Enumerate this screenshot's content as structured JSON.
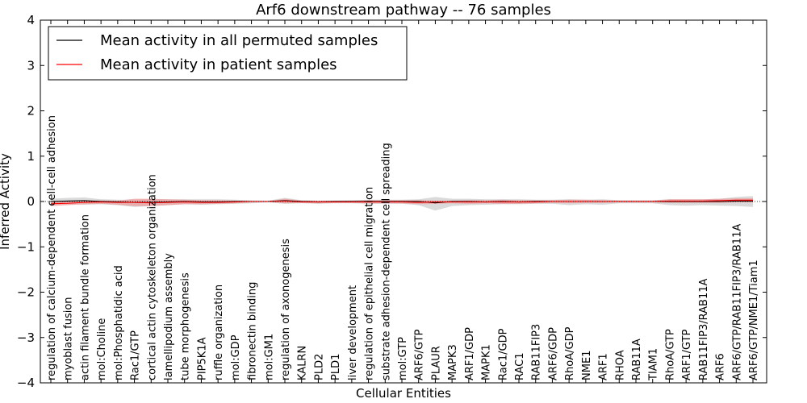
{
  "chart_data": {
    "type": "line",
    "title": "Arf6 downstream pathway -- 76 samples",
    "xlabel": "Cellular Entities",
    "ylabel": "Inferred Activity",
    "ylim": [
      -4,
      4
    ],
    "yticks": [
      "4",
      "3",
      "2",
      "1",
      "0",
      "−1",
      "−2",
      "−3",
      "−4"
    ],
    "ytick_values": [
      4,
      3,
      2,
      1,
      0,
      -1,
      -2,
      -3,
      -4
    ],
    "categories": [
      "regulation of calcium-dependent cell-cell adhesion",
      "myoblast fusion",
      "actin filament bundle formation",
      "mol:Choline",
      "mol:Phosphatidic acid",
      "Rac1/GTP",
      "cortical actin cytoskeleton organization",
      "lamellipodium assembly",
      "tube morphogenesis",
      "PIP5K1A",
      "ruffle organization",
      "mol:GDP",
      "fibronectin binding",
      "mol:GM1",
      "regulation of axonogenesis",
      "KALRN",
      "PLD2",
      "PLD1",
      "liver development",
      "regulation of epithelial cell migration",
      "substrate adhesion-dependent cell spreading",
      "mol:GTP",
      "ARF6/GTP",
      "PLAUR",
      "MAPK3",
      "ARF1/GDP",
      "MAPK1",
      "Rac1/GDP",
      "RAC1",
      "RAB11FIP3",
      "ARF6/GDP",
      "RhoA/GDP",
      "NME1",
      "ARF1",
      "RHOA",
      "RAB11A",
      "TIAM1",
      "RhoA/GTP",
      "ARF1/GTP",
      "RAB11FIP3/RAB11A",
      "ARF6",
      "ARF6/GTP/RAB11FIP3/RAB11A",
      "ARF6/GTP/NME1/Tiam1"
    ],
    "series": [
      {
        "name": "Mean activity in all permuted samples",
        "color": "#000000",
        "values": [
          0.0,
          0.01,
          0.02,
          0.0,
          -0.01,
          -0.02,
          -0.02,
          -0.01,
          0.0,
          -0.01,
          -0.01,
          0.0,
          0.0,
          0.0,
          0.02,
          0.0,
          -0.01,
          0.0,
          0.0,
          0.0,
          0.0,
          0.0,
          0.0,
          -0.03,
          0.0,
          0.0,
          -0.01,
          0.0,
          -0.01,
          0.0,
          0.0,
          0.0,
          0.0,
          0.0,
          0.0,
          0.0,
          0.0,
          0.0,
          0.0,
          0.0,
          0.0,
          0.01,
          0.01
        ],
        "band": {
          "color": "#bbbbbb",
          "upper": [
            0.06,
            0.08,
            0.09,
            0.05,
            0.04,
            0.04,
            0.05,
            0.05,
            0.05,
            0.05,
            0.05,
            0.04,
            0.03,
            0.02,
            0.08,
            0.03,
            0.02,
            0.02,
            0.03,
            0.04,
            0.04,
            0.04,
            0.05,
            0.1,
            0.06,
            0.06,
            0.05,
            0.05,
            0.05,
            0.04,
            0.04,
            0.05,
            0.04,
            0.05,
            0.03,
            0.03,
            0.03,
            0.05,
            0.05,
            0.05,
            0.06,
            0.1,
            0.12
          ],
          "lower": [
            -0.06,
            -0.06,
            -0.07,
            -0.06,
            -0.08,
            -0.12,
            -0.1,
            -0.08,
            -0.06,
            -0.07,
            -0.06,
            -0.05,
            -0.04,
            -0.02,
            -0.05,
            -0.04,
            -0.05,
            -0.04,
            -0.04,
            -0.05,
            -0.05,
            -0.05,
            -0.08,
            -0.2,
            -0.1,
            -0.08,
            -0.07,
            -0.06,
            -0.06,
            -0.05,
            -0.05,
            -0.08,
            -0.06,
            -0.07,
            -0.04,
            -0.04,
            -0.04,
            -0.08,
            -0.09,
            -0.08,
            -0.09,
            -0.1,
            -0.12
          ]
        }
      },
      {
        "name": "Mean activity in patient samples",
        "color": "#ff0000",
        "values": [
          -0.05,
          -0.04,
          -0.02,
          -0.01,
          -0.02,
          -0.02,
          -0.03,
          -0.02,
          -0.01,
          -0.02,
          -0.02,
          -0.01,
          0.0,
          0.0,
          0.01,
          -0.01,
          -0.01,
          -0.01,
          -0.01,
          -0.01,
          -0.01,
          -0.01,
          -0.02,
          -0.01,
          -0.01,
          -0.01,
          -0.01,
          -0.01,
          -0.01,
          -0.01,
          0.0,
          0.0,
          0.0,
          0.0,
          0.0,
          0.0,
          0.0,
          0.01,
          0.01,
          0.01,
          0.02,
          0.03,
          0.03
        ],
        "band": {
          "color": "#ee9999",
          "upper": [
            0.0,
            0.0,
            0.02,
            0.02,
            0.02,
            0.06,
            0.06,
            0.05,
            0.04,
            0.03,
            0.03,
            0.02,
            0.01,
            0.01,
            0.06,
            0.02,
            0.02,
            0.02,
            0.02,
            0.03,
            0.03,
            0.03,
            0.03,
            0.02,
            0.02,
            0.03,
            0.03,
            0.04,
            0.03,
            0.03,
            0.03,
            0.04,
            0.04,
            0.03,
            0.02,
            0.02,
            0.02,
            0.05,
            0.05,
            0.05,
            0.06,
            0.07,
            0.07
          ],
          "lower": [
            -0.1,
            -0.08,
            -0.06,
            -0.05,
            -0.07,
            -0.1,
            -0.1,
            -0.08,
            -0.06,
            -0.06,
            -0.05,
            -0.04,
            -0.02,
            -0.01,
            -0.04,
            -0.03,
            -0.04,
            -0.03,
            -0.03,
            -0.04,
            -0.04,
            -0.04,
            -0.06,
            -0.05,
            -0.04,
            -0.05,
            -0.04,
            -0.05,
            -0.05,
            -0.04,
            -0.03,
            -0.04,
            -0.03,
            -0.03,
            -0.02,
            -0.02,
            -0.02,
            -0.03,
            -0.03,
            -0.03,
            -0.03,
            -0.02,
            -0.02
          ]
        }
      }
    ],
    "legend_location": "top-left"
  }
}
